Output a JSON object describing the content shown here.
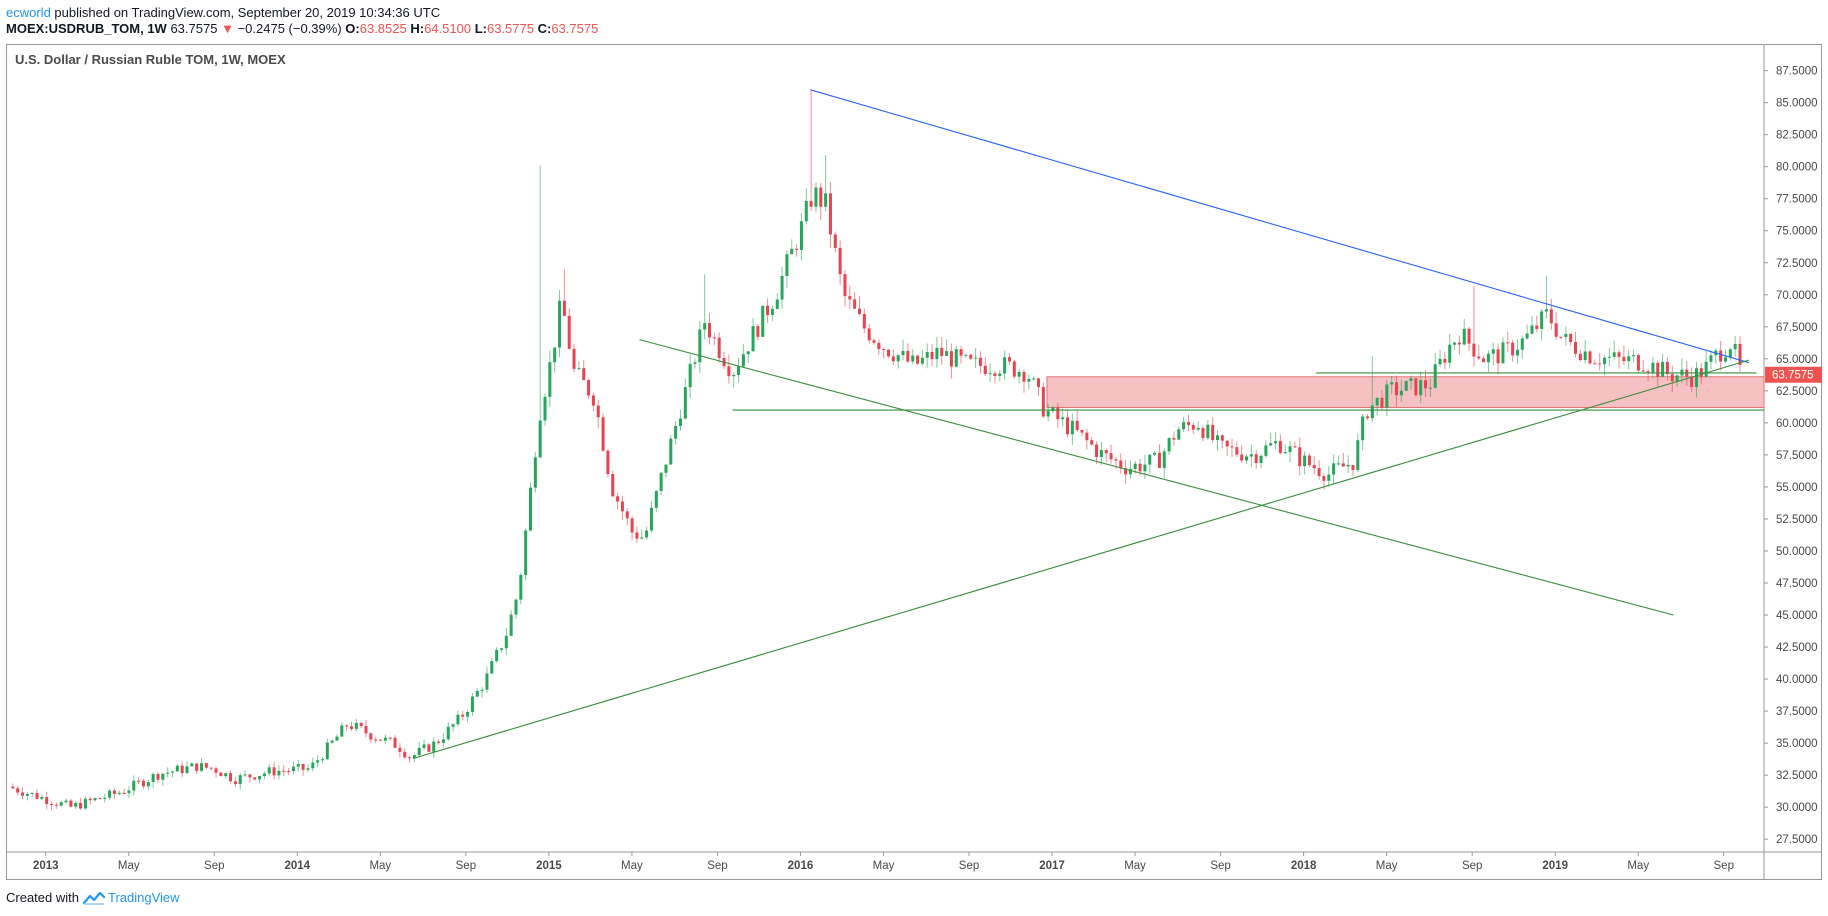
{
  "header": {
    "author": "ecworld",
    "published": "published on TradingView.com, September 20, 2019 10:34:36 UTC",
    "symbol": "MOEX:USDRUB_TOM, 1W",
    "last": "63.7575",
    "change_arrow": "▼",
    "change": "−0.2475 (−0.39%)",
    "o_label": "O:",
    "o_value": "63.8525",
    "h_label": "H:",
    "h_value": "64.5100",
    "l_label": "L:",
    "l_value": "63.5775",
    "c_label": "C:",
    "c_value": "63.7575"
  },
  "footer": {
    "created": "Created with",
    "brand": "TradingView",
    "logo_icon": "tradingview-logo-icon"
  },
  "colors": {
    "up": "#26a65b",
    "down": "#e8434f",
    "trend_blue": "#2962ff",
    "trend_green": "#388e3c",
    "zone_fill": "#f4b6b8",
    "zone_border": "#e57373",
    "last_badge": "#ef5350"
  },
  "chart_data": {
    "type": "candlestick",
    "title": "U.S. Dollar / Russian Ruble TOM, 1W, MOEX",
    "ylim": [
      26.5,
      89.5
    ],
    "y_ticks": [
      87.5,
      85,
      82.5,
      80,
      77.5,
      75,
      72.5,
      70,
      67.5,
      65,
      62.5,
      60,
      57.5,
      55,
      52.5,
      50,
      47.5,
      45,
      42.5,
      40,
      37.5,
      35,
      32.5,
      30,
      27.5
    ],
    "y_tick_labels": [
      "87.5000",
      "85.0000",
      "82.5000",
      "80.0000",
      "77.5000",
      "75.0000",
      "72.5000",
      "70.0000",
      "67.5000",
      "65.0000",
      "62.5000",
      "60.0000",
      "57.5000",
      "55.0000",
      "52.5000",
      "50.0000",
      "47.5000",
      "45.0000",
      "42.5000",
      "40.0000",
      "37.5000",
      "35.0000",
      "32.5000",
      "30.0000",
      "27.5000"
    ],
    "x_ticks": [
      {
        "t": 2013.0,
        "label": "2013",
        "bold": true
      },
      {
        "t": 2013.33,
        "label": "May",
        "bold": false
      },
      {
        "t": 2013.67,
        "label": "Sep",
        "bold": false
      },
      {
        "t": 2014.0,
        "label": "2014",
        "bold": true
      },
      {
        "t": 2014.33,
        "label": "May",
        "bold": false
      },
      {
        "t": 2014.67,
        "label": "Sep",
        "bold": false
      },
      {
        "t": 2015.0,
        "label": "2015",
        "bold": true
      },
      {
        "t": 2015.33,
        "label": "May",
        "bold": false
      },
      {
        "t": 2015.67,
        "label": "Sep",
        "bold": false
      },
      {
        "t": 2016.0,
        "label": "2016",
        "bold": true
      },
      {
        "t": 2016.33,
        "label": "May",
        "bold": false
      },
      {
        "t": 2016.67,
        "label": "Sep",
        "bold": false
      },
      {
        "t": 2017.0,
        "label": "2017",
        "bold": true
      },
      {
        "t": 2017.33,
        "label": "May",
        "bold": false
      },
      {
        "t": 2017.67,
        "label": "Sep",
        "bold": false
      },
      {
        "t": 2018.0,
        "label": "2018",
        "bold": true
      },
      {
        "t": 2018.33,
        "label": "May",
        "bold": false
      },
      {
        "t": 2018.67,
        "label": "Sep",
        "bold": false
      },
      {
        "t": 2019.0,
        "label": "2019",
        "bold": true
      },
      {
        "t": 2019.33,
        "label": "May",
        "bold": false
      },
      {
        "t": 2019.67,
        "label": "Sep",
        "bold": false
      }
    ],
    "xlim": [
      2012.85,
      2019.83
    ],
    "last_price": 63.7575,
    "last_label": "63.7575",
    "anchors": [
      [
        2012.85,
        31.6
      ],
      [
        2013.1,
        30.0
      ],
      [
        2013.3,
        31.2
      ],
      [
        2013.45,
        32.6
      ],
      [
        2013.6,
        33.2
      ],
      [
        2013.67,
        33.0
      ],
      [
        2013.75,
        32.2
      ],
      [
        2013.9,
        32.8
      ],
      [
        2014.05,
        33.0
      ],
      [
        2014.15,
        35.3
      ],
      [
        2014.2,
        36.5
      ],
      [
        2014.3,
        35.6
      ],
      [
        2014.4,
        34.8
      ],
      [
        2014.45,
        33.9
      ],
      [
        2014.55,
        35.0
      ],
      [
        2014.65,
        37.0
      ],
      [
        2014.75,
        40.0
      ],
      [
        2014.83,
        43.5
      ],
      [
        2014.88,
        47.0
      ],
      [
        2014.92,
        53.5
      ],
      [
        2014.96,
        60.5
      ],
      [
        2015.01,
        65.0
      ],
      [
        2015.05,
        69.5
      ],
      [
        2015.1,
        64.0
      ],
      [
        2015.18,
        62.0
      ],
      [
        2015.25,
        55.0
      ],
      [
        2015.33,
        51.5
      ],
      [
        2015.38,
        51.0
      ],
      [
        2015.45,
        56.0
      ],
      [
        2015.55,
        63.0
      ],
      [
        2015.62,
        68.0
      ],
      [
        2015.67,
        66.0
      ],
      [
        2015.73,
        64.0
      ],
      [
        2015.8,
        66.5
      ],
      [
        2015.9,
        70.0
      ],
      [
        2016.0,
        75.0
      ],
      [
        2016.05,
        78.0
      ],
      [
        2016.1,
        77.0
      ],
      [
        2016.17,
        70.0
      ],
      [
        2016.25,
        67.5
      ],
      [
        2016.33,
        66.0
      ],
      [
        2016.45,
        64.5
      ],
      [
        2016.55,
        65.5
      ],
      [
        2016.67,
        64.5
      ],
      [
        2016.8,
        64.5
      ],
      [
        2016.9,
        64.0
      ],
      [
        2016.97,
        61.0
      ],
      [
        2017.08,
        59.5
      ],
      [
        2017.2,
        57.5
      ],
      [
        2017.3,
        56.5
      ],
      [
        2017.42,
        57.0
      ],
      [
        2017.5,
        59.5
      ],
      [
        2017.58,
        60.0
      ],
      [
        2017.67,
        58.0
      ],
      [
        2017.8,
        57.5
      ],
      [
        2017.9,
        58.5
      ],
      [
        2018.0,
        57.0
      ],
      [
        2018.1,
        56.0
      ],
      [
        2018.2,
        57.0
      ],
      [
        2018.25,
        61.0
      ],
      [
        2018.35,
        62.5
      ],
      [
        2018.5,
        63.0
      ],
      [
        2018.58,
        66.0
      ],
      [
        2018.62,
        67.0
      ],
      [
        2018.72,
        65.0
      ],
      [
        2018.8,
        65.5
      ],
      [
        2018.88,
        66.5
      ],
      [
        2018.97,
        68.5
      ],
      [
        2019.03,
        66.5
      ],
      [
        2019.15,
        65.2
      ],
      [
        2019.25,
        64.9
      ],
      [
        2019.35,
        64.8
      ],
      [
        2019.45,
        63.8
      ],
      [
        2019.55,
        63.6
      ],
      [
        2019.6,
        64.3
      ],
      [
        2019.65,
        65.5
      ],
      [
        2019.7,
        66.3
      ],
      [
        2019.74,
        63.76
      ]
    ],
    "spikes": [
      {
        "t": 2014.96,
        "high": 80.1
      },
      {
        "t": 2016.05,
        "high": 86.0
      },
      {
        "t": 2016.1,
        "high": 80.9
      },
      {
        "t": 2015.62,
        "high": 71.6
      },
      {
        "t": 2015.07,
        "high": 72.0
      },
      {
        "t": 2018.97,
        "high": 71.5
      },
      {
        "t": 2018.68,
        "high": 70.7
      },
      {
        "t": 2018.28,
        "high": 65.2
      }
    ],
    "trendlines": [
      {
        "name": "descending-resistance",
        "color": "blue",
        "from": [
          2016.04,
          86.0
        ],
        "to": [
          2019.77,
          64.7
        ]
      },
      {
        "name": "rising-support",
        "color": "green",
        "from": [
          2014.46,
          33.8
        ],
        "to": [
          2019.77,
          64.9
        ]
      },
      {
        "name": "falling-channel",
        "color": "green",
        "from": [
          2015.36,
          66.5
        ],
        "to": [
          2019.47,
          45.0
        ]
      },
      {
        "name": "horizontal-support",
        "color": "green",
        "from": [
          2015.73,
          61.0
        ],
        "to": [
          2019.83,
          61.0
        ]
      },
      {
        "name": "horizontal-level",
        "color": "green",
        "from": [
          2018.05,
          63.9
        ],
        "to": [
          2019.8,
          63.9
        ]
      }
    ],
    "zone": {
      "from_t": 2016.98,
      "to_t": 2019.83,
      "top": 63.6,
      "bottom": 61.2
    }
  }
}
